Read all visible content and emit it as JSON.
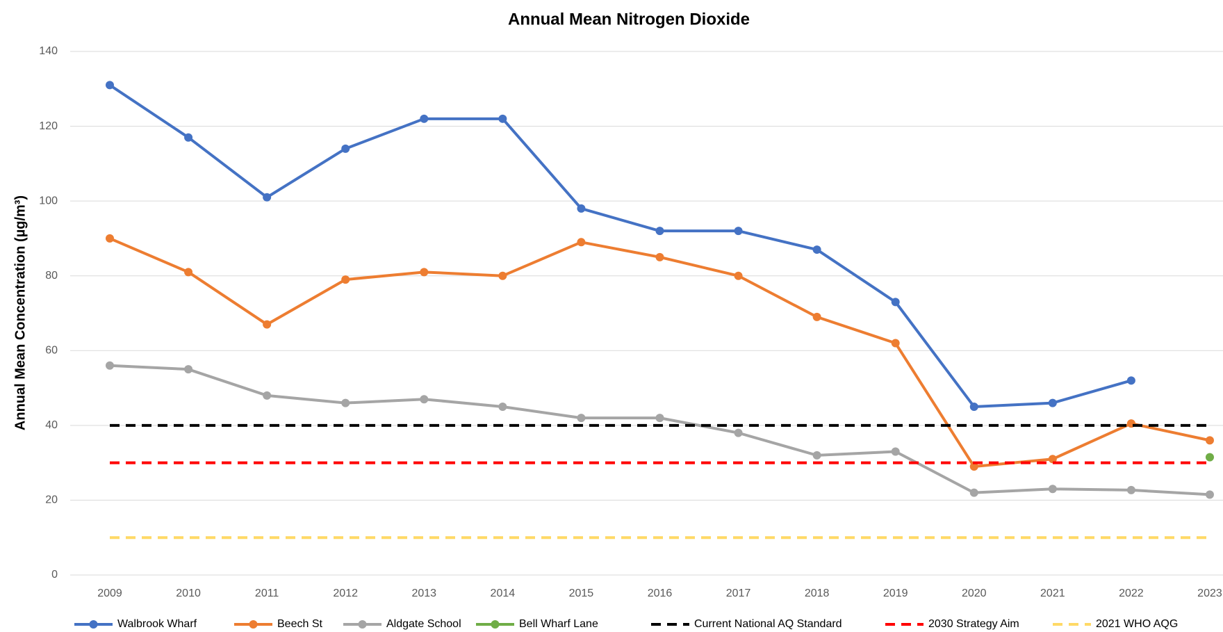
{
  "chart_data": {
    "type": "line",
    "title": "Annual Mean Nitrogen Dioxide",
    "y_label": "Annual Mean Concentration (µg/m³)",
    "categories": [
      "2009",
      "2010",
      "2011",
      "2012",
      "2013",
      "2014",
      "2015",
      "2016",
      "2017",
      "2018",
      "2019",
      "2020",
      "2021",
      "2022",
      "2023"
    ],
    "ylim": [
      0,
      140
    ],
    "yticks": [
      0,
      20,
      40,
      60,
      80,
      100,
      120,
      140
    ],
    "grid": true,
    "legend": "bottom",
    "series": [
      {
        "name": "Walbrook Wharf",
        "color": "#4472c4",
        "values": [
          131,
          117,
          101,
          114,
          122,
          122,
          98,
          92,
          92,
          87,
          73,
          45,
          46,
          52,
          null
        ]
      },
      {
        "name": "Beech St",
        "color": "#ed7d31",
        "values": [
          90,
          81,
          67,
          79,
          81,
          80,
          89,
          85,
          80,
          69,
          62,
          29,
          31,
          40.5,
          36
        ]
      },
      {
        "name": "Aldgate School",
        "color": "#a5a5a5",
        "values": [
          56,
          55,
          48,
          46,
          47,
          45,
          42,
          42,
          38,
          32,
          33,
          22,
          23,
          22.7,
          21.5
        ]
      },
      {
        "name": "Bell Wharf Lane",
        "color": "#70ad47",
        "values": [
          null,
          null,
          null,
          null,
          null,
          null,
          null,
          null,
          null,
          null,
          null,
          null,
          null,
          null,
          31.5
        ]
      },
      {
        "name": "Current National AQ Standard",
        "color": "#000000",
        "dashed": true,
        "values": [
          40,
          40,
          40,
          40,
          40,
          40,
          40,
          40,
          40,
          40,
          40,
          40,
          40,
          40,
          40
        ]
      },
      {
        "name": "2030 Strategy Aim",
        "color": "#ff0000",
        "dashed": true,
        "values": [
          30,
          30,
          30,
          30,
          30,
          30,
          30,
          30,
          30,
          30,
          30,
          30,
          30,
          30,
          30
        ]
      },
      {
        "name": "2021 WHO AQG",
        "color": "#ffd966",
        "dashed": true,
        "values": [
          10,
          10,
          10,
          10,
          10,
          10,
          10,
          10,
          10,
          10,
          10,
          10,
          10,
          10,
          10
        ]
      }
    ]
  }
}
